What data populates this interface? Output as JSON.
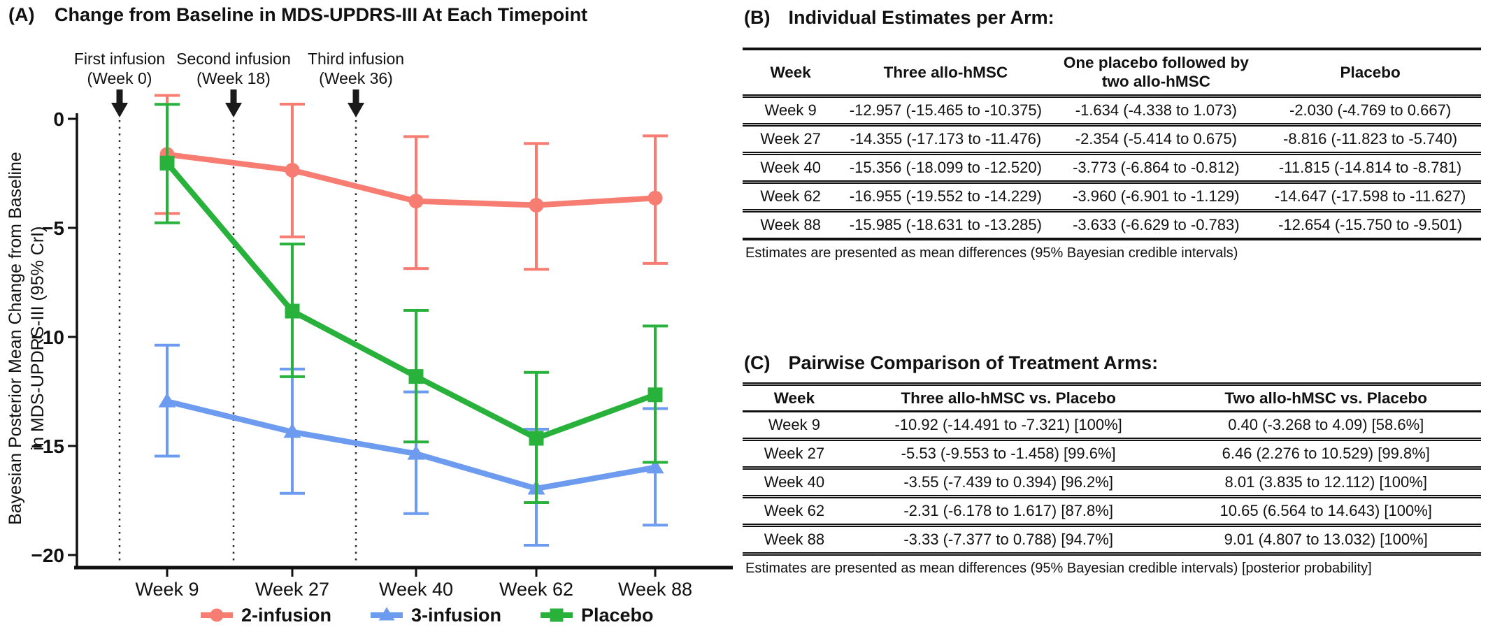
{
  "panelA": {
    "tag": "(A)",
    "title": "Change from Baseline in MDS-UPDRS-III At Each Timepoint"
  },
  "chart_data": {
    "type": "line",
    "title": "Change from Baseline in MDS-UPDRS-III At Each Timepoint",
    "categories": [
      "Week 9",
      "Week 27",
      "Week 40",
      "Week 62",
      "Week 88"
    ],
    "ylabel": "Bayesian Posterior Mean Change from Baseline in MDS-UPDRS-III (95% CrI)",
    "ylabel_lines": [
      "Bayesian Posterior Mean Change from Baseline",
      "in MDS-UPDRS-III (95% CrI)"
    ],
    "xlabel": "",
    "ylim": [
      -21.5,
      1.5
    ],
    "yticks": [
      0,
      -5,
      -10,
      -15,
      -20
    ],
    "grid": false,
    "legend_position": "bottom",
    "annotations": [
      {
        "line1": "First infusion",
        "line2": "(Week 0)",
        "week": 0
      },
      {
        "line1": "Second infusion",
        "line2": "(Week 18)",
        "week": 18
      },
      {
        "line1": "Third infusion",
        "line2": "(Week 36)",
        "week": 36
      }
    ],
    "series": [
      {
        "name": "2-infusion",
        "marker": "circle",
        "color": "#F77D73",
        "values": [
          -1.634,
          -2.354,
          -3.773,
          -3.96,
          -3.633
        ],
        "ci_low": [
          -4.338,
          -5.414,
          -6.864,
          -6.901,
          -6.629
        ],
        "ci_high": [
          1.073,
          0.675,
          -0.812,
          -1.129,
          -0.783
        ]
      },
      {
        "name": "3-infusion",
        "marker": "triangle",
        "color": "#6C9BF0",
        "values": [
          -12.957,
          -14.355,
          -15.356,
          -16.955,
          -15.985
        ],
        "ci_low": [
          -15.465,
          -17.173,
          -18.099,
          -19.552,
          -18.631
        ],
        "ci_high": [
          -10.375,
          -11.476,
          -12.52,
          -14.229,
          -13.285
        ]
      },
      {
        "name": "Placebo",
        "marker": "square",
        "color": "#28B23C",
        "values": [
          -2.03,
          -8.816,
          -11.815,
          -14.647,
          -12.654
        ],
        "ci_low": [
          -4.769,
          -11.823,
          -14.814,
          -17.598,
          -15.75
        ],
        "ci_high": [
          0.667,
          -5.74,
          -8.781,
          -11.627,
          -9.501
        ]
      }
    ]
  },
  "panelB": {
    "tag": "(B)",
    "title": "Individual Estimates per Arm:",
    "columns": [
      "Week",
      "Three allo-hMSC",
      "One placebo followed by two allo-hMSC",
      "Placebo"
    ],
    "rows": [
      [
        "Week 9",
        "-12.957 (-15.465 to -10.375)",
        "-1.634 (-4.338 to 1.073)",
        "-2.030 (-4.769 to 0.667)"
      ],
      [
        "Week 27",
        "-14.355 (-17.173 to -11.476)",
        "-2.354 (-5.414 to 0.675)",
        "-8.816 (-11.823 to -5.740)"
      ],
      [
        "Week 40",
        "-15.356 (-18.099 to -12.520)",
        "-3.773 (-6.864 to -0.812)",
        "-11.815 (-14.814 to -8.781)"
      ],
      [
        "Week 62",
        "-16.955 (-19.552 to -14.229)",
        "-3.960 (-6.901 to -1.129)",
        "-14.647 (-17.598 to -11.627)"
      ],
      [
        "Week 88",
        "-15.985 (-18.631 to -13.285)",
        "-3.633 (-6.629 to -0.783)",
        "-12.654 (-15.750 to -9.501)"
      ]
    ],
    "footnote": "Estimates are presented as mean differences (95% Bayesian credible intervals)"
  },
  "panelC": {
    "tag": "(C)",
    "title": "Pairwise Comparison of Treatment Arms:",
    "columns": [
      "Week",
      "Three allo-hMSC vs. Placebo",
      "Two allo-hMSC vs. Placebo"
    ],
    "rows": [
      [
        "Week 9",
        "-10.92 (-14.491 to -7.321) [100%]",
        "0.40 (-3.268 to 4.09) [58.6%]"
      ],
      [
        "Week 27",
        "-5.53 (-9.553 to -1.458) [99.6%]",
        "6.46 (2.276 to 10.529) [99.8%]"
      ],
      [
        "Week 40",
        "-3.55 (-7.439 to 0.394) [96.2%]",
        "8.01 (3.835 to 12.112) [100%]"
      ],
      [
        "Week 62",
        "-2.31 (-6.178 to 1.617) [87.8%]",
        "10.65 (6.564 to 14.643) [100%]"
      ],
      [
        "Week 88",
        "-3.33 (-7.377 to 0.788) [94.7%]",
        "9.01 (4.807 to 13.032) [100%]"
      ]
    ],
    "footnote": "Estimates are presented as mean differences (95% Bayesian credible intervals) [posterior probability]"
  }
}
